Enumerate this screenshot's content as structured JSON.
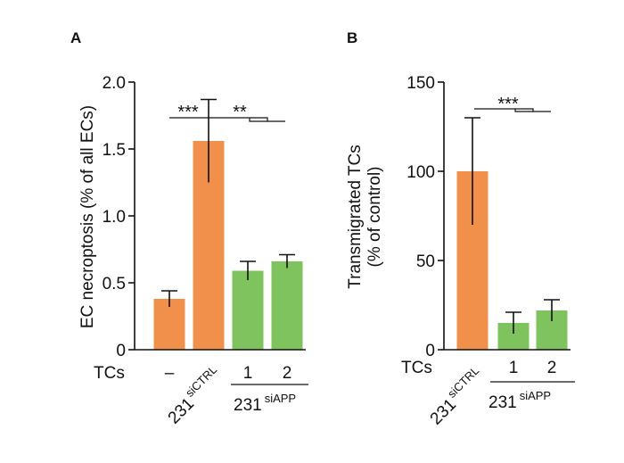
{
  "colors": {
    "orange": "#F0904A",
    "green": "#7EC35D",
    "axis": "#111111"
  },
  "chart_data": [
    {
      "type": "bar",
      "panel": "A",
      "ylabel": "EC necroptosis (% of all ECs)",
      "ylim": [
        0,
        2.0
      ],
      "yticks": [
        "2.0",
        "1.5",
        "1.0",
        "0.5",
        "0"
      ],
      "row_label": "TCs",
      "categories": [
        "–",
        "231 siCTRL",
        "1",
        "2"
      ],
      "values": [
        0.38,
        1.56,
        0.59,
        0.66
      ],
      "errors": [
        0.06,
        0.31,
        0.07,
        0.05
      ],
      "bar_colors": [
        "orange",
        "orange",
        "green",
        "green"
      ],
      "cat_main_2": "231",
      "cat_sup_2": "siCTRL",
      "group_main": "231",
      "group_sup": "siAPP",
      "significance": [
        "***",
        "**"
      ]
    },
    {
      "type": "bar",
      "panel": "B",
      "ylabel_line1": "Transmigrated TCs",
      "ylabel_line2": "(% of control)",
      "ylim": [
        0,
        150
      ],
      "yticks": [
        "150",
        "100",
        "50",
        "0"
      ],
      "row_label": "TCs",
      "categories": [
        "231 siCTRL",
        "1",
        "2"
      ],
      "values": [
        100,
        15,
        22
      ],
      "errors": [
        30,
        6,
        6
      ],
      "bar_colors": [
        "orange",
        "green",
        "green"
      ],
      "cat_main_1": "231",
      "cat_sup_1": "siCTRL",
      "group_main": "231",
      "group_sup": "siAPP",
      "significance": [
        "***"
      ]
    }
  ]
}
